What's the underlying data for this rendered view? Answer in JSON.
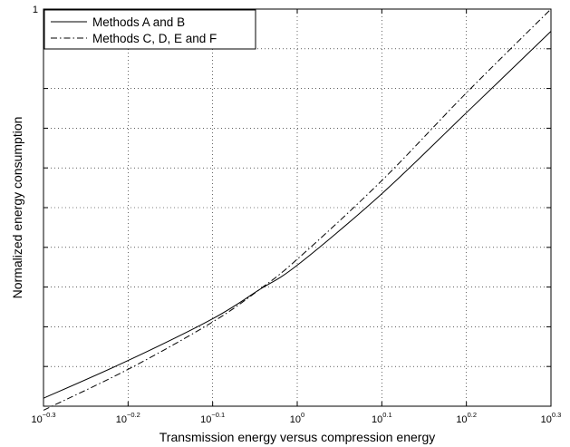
{
  "chart_data": {
    "type": "line",
    "title": "",
    "xlabel": "Transmission energy versus compression energy",
    "ylabel": "Normalized energy consumption",
    "x_scale": "log",
    "x_tick_labels": [
      {
        "base": "10",
        "exp": "−0.3"
      },
      {
        "base": "10",
        "exp": "−0.2"
      },
      {
        "base": "10",
        "exp": "−0.1"
      },
      {
        "base": "10",
        "exp": "0"
      },
      {
        "base": "10",
        "exp": "0.1"
      },
      {
        "base": "10",
        "exp": "0.2"
      },
      {
        "base": "10",
        "exp": "0.3"
      }
    ],
    "y_tick_labels": [
      "1"
    ],
    "xlim": [
      0.5012,
      1.9953
    ],
    "ylim": [
      0,
      1
    ],
    "grid": true,
    "legend_position": "top-left",
    "x": [
      0.5012,
      0.631,
      0.7943,
      0.9,
      1.0,
      1.2589,
      1.5849,
      1.9953
    ],
    "series": [
      {
        "name": "Methods A and B",
        "style": "solid",
        "values": [
          0.02,
          0.115,
          0.22,
          0.292,
          0.355,
          0.535,
          0.739,
          0.944
        ]
      },
      {
        "name": "Methods C, D, E and F",
        "style": "dashdot",
        "values": [
          -0.01,
          0.093,
          0.212,
          0.292,
          0.37,
          0.568,
          0.789,
          1.0
        ]
      }
    ]
  }
}
